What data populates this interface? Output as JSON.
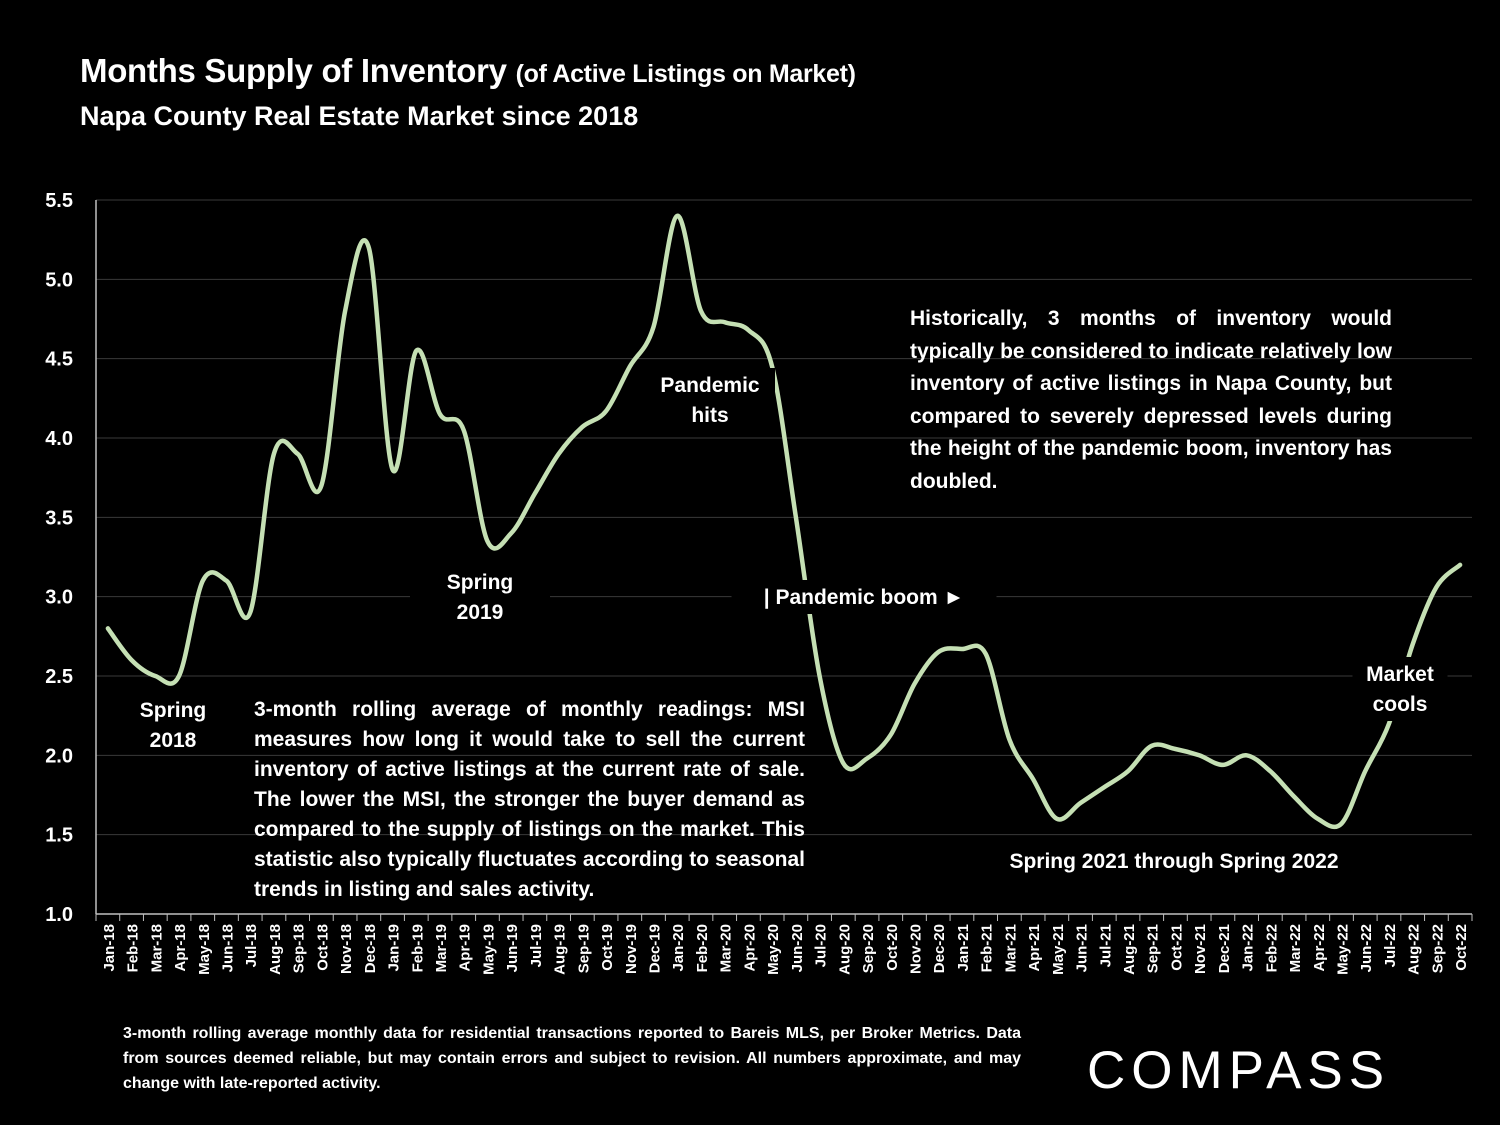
{
  "title": {
    "main": "Months Supply of Inventory",
    "sub": "(of Active Listings on Market)",
    "subtitle": "Napa County Real Estate Market since 2018"
  },
  "notes": {
    "history": "Historically, 3 months of inventory would typically be considered to indicate relatively low inventory of active listings in Napa County, but compared to severely depressed levels during the height of the pandemic boom, inventory has doubled.",
    "msi": "3-month rolling average of monthly readings: MSI measures how long it would take to sell the current inventory of active listings at the current rate of sale. The lower the MSI, the stronger the buyer demand as compared to the supply of listings on the market. This statistic also typically fluctuates according to seasonal trends in listing and sales activity."
  },
  "footnote": "3-month rolling average monthly data for residential transactions reported to Bareis MLS, per Broker Metrics. Data from sources deemed reliable, but may contain errors and subject to revision. All numbers approximate, and may change with late-reported activity.",
  "brand": "COMPASS",
  "colors": {
    "background": "#000000",
    "line": "#c5e0b4",
    "grid": "#3a3a3a",
    "text": "#ffffff"
  },
  "chart_data": {
    "type": "line",
    "title": "Months Supply of Inventory (of Active Listings on Market)",
    "subtitle": "Napa County Real Estate Market since 2018",
    "xlabel": "",
    "ylabel": "",
    "ylim": [
      1.0,
      5.5
    ],
    "yticks": [
      "1.0",
      "1.5",
      "2.0",
      "2.5",
      "3.0",
      "3.5",
      "4.0",
      "4.5",
      "5.0",
      "5.5"
    ],
    "grid": true,
    "legend": "none",
    "categories": [
      "Jan-18",
      "Feb-18",
      "Mar-18",
      "Apr-18",
      "May-18",
      "Jun-18",
      "Jul-18",
      "Aug-18",
      "Sep-18",
      "Oct-18",
      "Nov-18",
      "Dec-18",
      "Jan-19",
      "Feb-19",
      "Mar-19",
      "Apr-19",
      "May-19",
      "Jun-19",
      "Jul-19",
      "Aug-19",
      "Sep-19",
      "Oct-19",
      "Nov-19",
      "Dec-19",
      "Jan-20",
      "Feb-20",
      "Mar-20",
      "Apr-20",
      "May-20",
      "Jun-20",
      "Jul-20",
      "Aug-20",
      "Sep-20",
      "Oct-20",
      "Nov-20",
      "Dec-20",
      "Jan-21",
      "Feb-21",
      "Mar-21",
      "Apr-21",
      "May-21",
      "Jun-21",
      "Jul-21",
      "Aug-21",
      "Sep-21",
      "Oct-21",
      "Nov-21",
      "Dec-21",
      "Jan-22",
      "Feb-22",
      "Mar-22",
      "Apr-22",
      "May-22",
      "Jun-22",
      "Jul-22",
      "Aug-22",
      "Sep-22",
      "Oct-22"
    ],
    "series": [
      {
        "name": "Months Supply of Inventory",
        "values": [
          2.8,
          2.6,
          2.5,
          2.5,
          3.1,
          3.1,
          2.9,
          3.9,
          3.9,
          3.7,
          4.8,
          5.2,
          3.8,
          4.55,
          4.15,
          4.05,
          3.35,
          3.4,
          3.65,
          3.9,
          4.07,
          4.17,
          4.45,
          4.7,
          5.4,
          4.8,
          4.73,
          4.68,
          4.45,
          3.5,
          2.5,
          1.95,
          1.98,
          2.13,
          2.45,
          2.65,
          2.67,
          2.64,
          2.1,
          1.85,
          1.6,
          1.7,
          1.8,
          1.9,
          2.06,
          2.04,
          2.0,
          1.94,
          2.0,
          1.9,
          1.74,
          1.6,
          1.57,
          1.9,
          2.2,
          2.7,
          3.06,
          3.2
        ]
      }
    ],
    "annotations": [
      {
        "text": "Spring\n2018"
      },
      {
        "text": "Spring\n2019"
      },
      {
        "text": "Pandemic\nhits"
      },
      {
        "text": "| Pandemic boom ►"
      },
      {
        "text": "Spring 2021 through Spring 2022"
      },
      {
        "text": "Market\ncools"
      }
    ]
  }
}
